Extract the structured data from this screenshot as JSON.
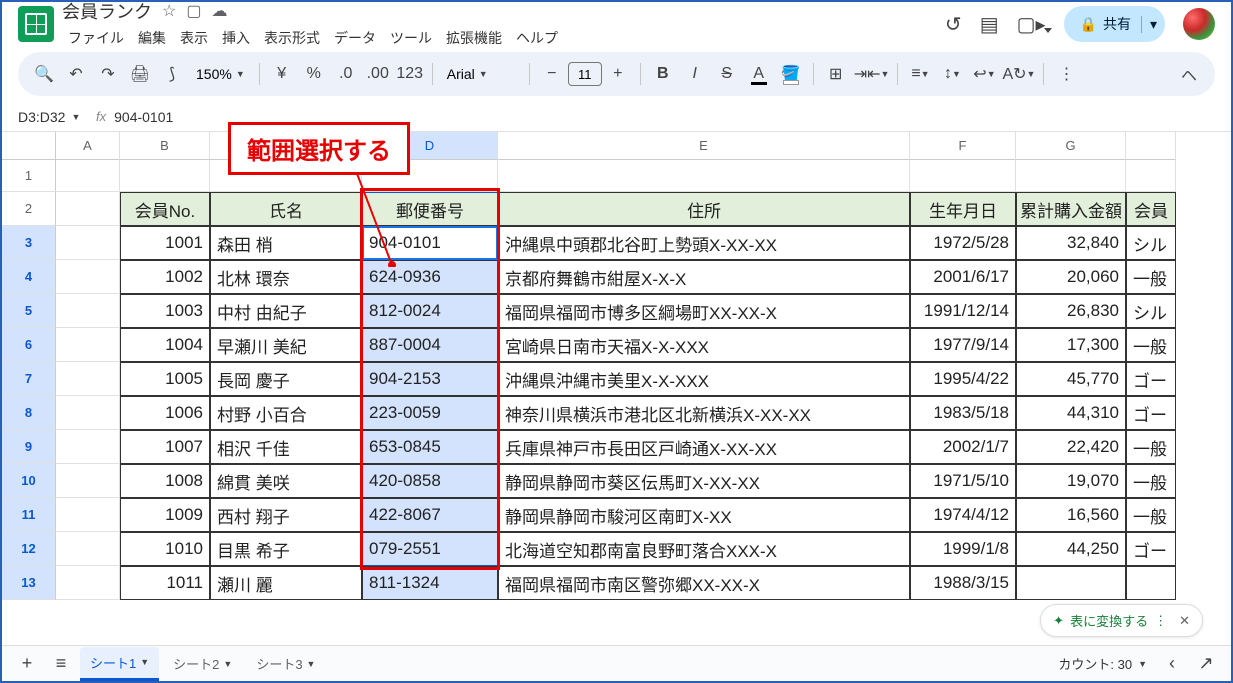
{
  "doc": {
    "title": "会員ランク"
  },
  "menu": {
    "file": "ファイル",
    "edit": "編集",
    "view": "表示",
    "insert": "挿入",
    "format": "表示形式",
    "data": "データ",
    "tools": "ツール",
    "ext": "拡張機能",
    "help": "ヘルプ"
  },
  "share": {
    "label": "共有"
  },
  "toolbar": {
    "zoom": "150%",
    "font": "Arial",
    "fontSize": "11"
  },
  "namebox": {
    "ref": "D3:D32",
    "formula": "904-0101"
  },
  "callout": {
    "text": "範囲選択する"
  },
  "cols": [
    "A",
    "B",
    "C",
    "D",
    "E",
    "F",
    "G"
  ],
  "headers": {
    "b": "会員No.",
    "c": "氏名",
    "d": "郵便番号",
    "e": "住所",
    "f": "生年月日",
    "g": "累計購入金額",
    "h": "会員"
  },
  "rows": [
    {
      "n": "3",
      "no": "1001",
      "name": "森田 梢",
      "zip": "904-0101",
      "addr": "沖縄県中頭郡北谷町上勢頭X-XX-XX",
      "dob": "1972/5/28",
      "amt": "32,840",
      "rank": "シル"
    },
    {
      "n": "4",
      "no": "1002",
      "name": "北林 環奈",
      "zip": "624-0936",
      "addr": "京都府舞鶴市紺屋X-X-X",
      "dob": "2001/6/17",
      "amt": "20,060",
      "rank": "一般"
    },
    {
      "n": "5",
      "no": "1003",
      "name": "中村 由紀子",
      "zip": "812-0024",
      "addr": "福岡県福岡市博多区綱場町XX-XX-X",
      "dob": "1991/12/14",
      "amt": "26,830",
      "rank": "シル"
    },
    {
      "n": "6",
      "no": "1004",
      "name": "早瀬川 美紀",
      "zip": "887-0004",
      "addr": "宮崎県日南市天福X-X-XXX",
      "dob": "1977/9/14",
      "amt": "17,300",
      "rank": "一般"
    },
    {
      "n": "7",
      "no": "1005",
      "name": "長岡 慶子",
      "zip": "904-2153",
      "addr": "沖縄県沖縄市美里X-X-XXX",
      "dob": "1995/4/22",
      "amt": "45,770",
      "rank": "ゴー"
    },
    {
      "n": "8",
      "no": "1006",
      "name": "村野 小百合",
      "zip": "223-0059",
      "addr": "神奈川県横浜市港北区北新横浜X-XX-XX",
      "dob": "1983/5/18",
      "amt": "44,310",
      "rank": "ゴー"
    },
    {
      "n": "9",
      "no": "1007",
      "name": "相沢 千佳",
      "zip": "653-0845",
      "addr": "兵庫県神戸市長田区戸崎通X-XX-XX",
      "dob": "2002/1/7",
      "amt": "22,420",
      "rank": "一般"
    },
    {
      "n": "10",
      "no": "1008",
      "name": "綿貫 美咲",
      "zip": "420-0858",
      "addr": "静岡県静岡市葵区伝馬町X-XX-XX",
      "dob": "1971/5/10",
      "amt": "19,070",
      "rank": "一般"
    },
    {
      "n": "11",
      "no": "1009",
      "name": "西村 翔子",
      "zip": "422-8067",
      "addr": "静岡県静岡市駿河区南町X-XX",
      "dob": "1974/4/12",
      "amt": "16,560",
      "rank": "一般"
    },
    {
      "n": "12",
      "no": "1010",
      "name": "目黒 希子",
      "zip": "079-2551",
      "addr": "北海道空知郡南富良野町落合XXX-X",
      "dob": "1999/1/8",
      "amt": "44,250",
      "rank": "ゴー"
    },
    {
      "n": "13",
      "no": "1011",
      "name": "瀬川 麗",
      "zip": "811-1324",
      "addr": "福岡県福岡市南区警弥郷XX-XX-X",
      "dob": "1988/3/15",
      "amt": "",
      "rank": ""
    }
  ],
  "tabs": {
    "s1": "シート1",
    "s2": "シート2",
    "s3": "シート3"
  },
  "footer": {
    "count": "カウント: 30",
    "convert": "表に変換する"
  },
  "colors": {
    "headerBg": "#e2efda",
    "selBg": "#d3e3fd",
    "red": "#e60000",
    "blue": "#0b57d0",
    "green": "#188038"
  }
}
